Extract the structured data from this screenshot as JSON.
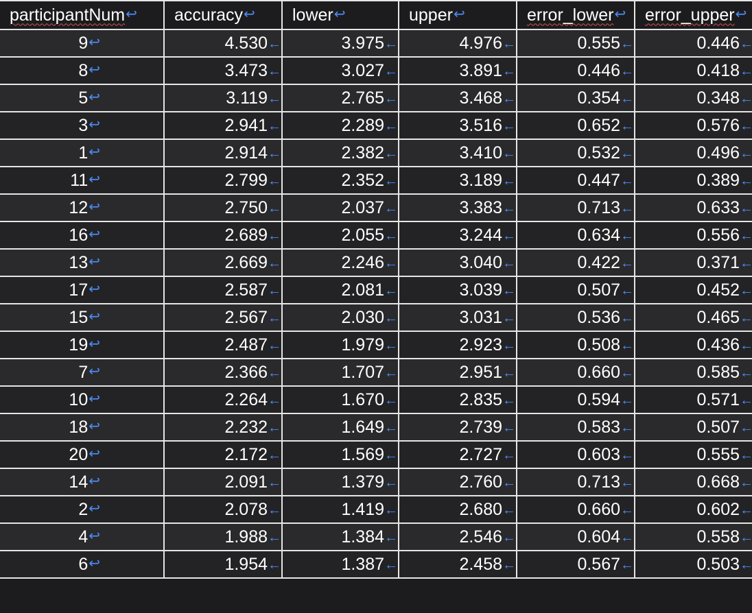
{
  "table": {
    "headers": [
      "participantNum",
      "accuracy",
      "lower",
      "upper",
      "error_lower",
      "error_upper"
    ],
    "spellcheck_flags": [
      true,
      false,
      false,
      false,
      true,
      true
    ],
    "paragraph_mark": "↩",
    "cell_mark": "←",
    "rows": [
      [
        "9",
        "4.530",
        "3.975",
        "4.976",
        "0.555",
        "0.446"
      ],
      [
        "8",
        "3.473",
        "3.027",
        "3.891",
        "0.446",
        "0.418"
      ],
      [
        "5",
        "3.119",
        "2.765",
        "3.468",
        "0.354",
        "0.348"
      ],
      [
        "3",
        "2.941",
        "2.289",
        "3.516",
        "0.652",
        "0.576"
      ],
      [
        "1",
        "2.914",
        "2.382",
        "3.410",
        "0.532",
        "0.496"
      ],
      [
        "11",
        "2.799",
        "2.352",
        "3.189",
        "0.447",
        "0.389"
      ],
      [
        "12",
        "2.750",
        "2.037",
        "3.383",
        "0.713",
        "0.633"
      ],
      [
        "16",
        "2.689",
        "2.055",
        "3.244",
        "0.634",
        "0.556"
      ],
      [
        "13",
        "2.669",
        "2.246",
        "3.040",
        "0.422",
        "0.371"
      ],
      [
        "17",
        "2.587",
        "2.081",
        "3.039",
        "0.507",
        "0.452"
      ],
      [
        "15",
        "2.567",
        "2.030",
        "3.031",
        "0.536",
        "0.465"
      ],
      [
        "19",
        "2.487",
        "1.979",
        "2.923",
        "0.508",
        "0.436"
      ],
      [
        "7",
        "2.366",
        "1.707",
        "2.951",
        "0.660",
        "0.585"
      ],
      [
        "10",
        "2.264",
        "1.670",
        "2.835",
        "0.594",
        "0.571"
      ],
      [
        "18",
        "2.232",
        "1.649",
        "2.739",
        "0.583",
        "0.507"
      ],
      [
        "20",
        "2.172",
        "1.569",
        "2.727",
        "0.603",
        "0.555"
      ],
      [
        "14",
        "2.091",
        "1.379",
        "2.760",
        "0.713",
        "0.668"
      ],
      [
        "2",
        "2.078",
        "1.419",
        "2.680",
        "0.660",
        "0.602"
      ],
      [
        "4",
        "1.988",
        "1.384",
        "2.546",
        "0.604",
        "0.558"
      ],
      [
        "6",
        "1.954",
        "1.387",
        "2.458",
        "0.567",
        "0.503"
      ]
    ]
  }
}
